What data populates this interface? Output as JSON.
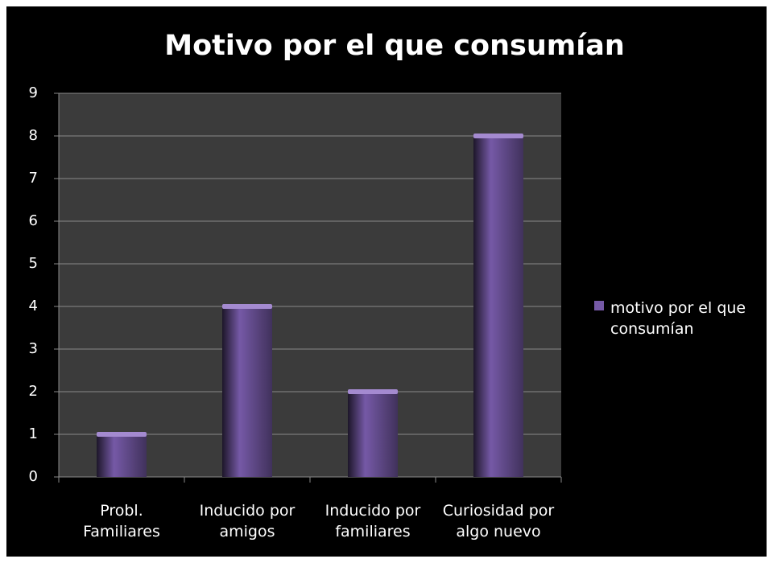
{
  "chart_data": {
    "type": "bar",
    "title": "Motivo por el que consumían",
    "categories": [
      "Probl. Familiares",
      "Inducido por amigos",
      "Inducido por familiares",
      "Curiosidad por algo nuevo"
    ],
    "series": [
      {
        "name": "motivo por el que consumían",
        "color": "#7559a6",
        "values": [
          1,
          4,
          2,
          8
        ]
      }
    ],
    "ylim": [
      0,
      9
    ],
    "yticks": [
      0,
      1,
      2,
      3,
      4,
      5,
      6,
      7,
      8,
      9
    ],
    "grid": true,
    "legend": "right"
  }
}
